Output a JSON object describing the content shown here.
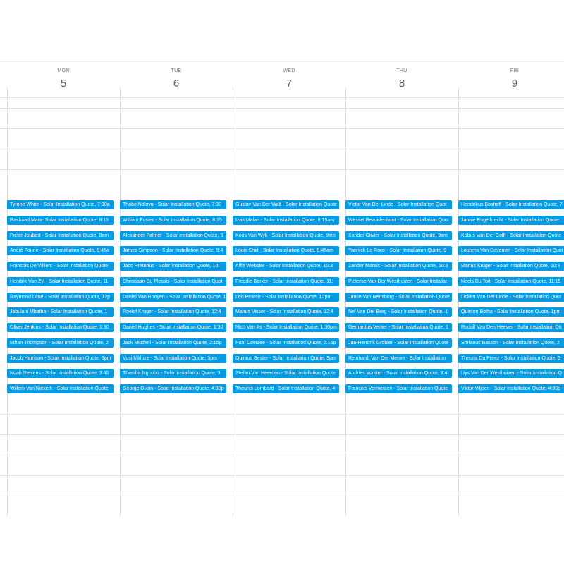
{
  "days": [
    {
      "name": "MON",
      "date": "5",
      "events": [
        "Tyrone White - Solar Installation Quote, 7:30a",
        "Rashaad Marx- Solar Installation Quote, 8:15",
        "Pieter Joubert - Solar Installation Quote, 9am",
        "André Fourie - Solar Installation Quote, 9:45a",
        "Francois De Villiers - Solar Installation Quote",
        "Hendrik Van Zyl - Solar Installation Quote, 11",
        "Raymond Lane - Solar Installation Quote, 12p",
        "Jabulani Mbatha - Solar Installation Quote, 1",
        "Oliver Jenkins - Solar Installation Quote, 1:30",
        "Ethan Thompson - Solar Installation Quote, 2",
        "Jacob Harrison - Solar Installation Quote, 3pm",
        "Noah Stevens - Solar Installation Quote, 3:45",
        "Willem Van Niekerk - Solar Installation Quote"
      ]
    },
    {
      "name": "TUE",
      "date": "6",
      "events": [
        "Thabo Ndlovu - Solar Installation Quote, 7:30",
        "William Foster - Solar Installation Quote, 8:15",
        "Alexander Palmer - Solar Installation Quote, 9",
        "James Simpson - Solar Installation Quote, 9:4",
        "Jaco Pretorius - Solar Installation Quote, 10:",
        "Christiaan Du Plessis - Solar Installation Quot",
        "Daniel Van Rooyen - Solar Installation Quote, 1",
        "Roelof Kruger - Solar Installation Quote, 12:4",
        "Daniel Hughes - Solar Installation Quote, 1:30",
        "Jack Mitchell - Solar Installation Quote, 2:15p",
        "Vusi Mkhize - Solar Installation Quote, 3pm",
        "Themba Ngcobo - Solar Installation Quote, 3",
        "George Dixon - Solar Installation Quote, 4:30p"
      ]
    },
    {
      "name": "WED",
      "date": "7",
      "events": [
        "Gustav Van Der Walt - Solar Installation Quote",
        "Izak Malan - Solar Installation Quote, 8:15am",
        "Koos Van Wyk - Solar Installation Quote, 9am",
        "Louis Smit - Solar Installation Quote, 9:45am",
        "Alfie Webster - Solar Installation Quote, 10:3",
        "Freddie Barker - Solar Installation Quote, 11:",
        "Leo Pearce - Solar Installation Quote, 12pm",
        "Marius Visser - Solar Installation Quote, 12:4",
        "Nico Van As - Solar Installation Quote, 1:30pm",
        "Paul Coetzee - Solar Installation Quote, 2:15p",
        "Quintus Bester - Solar Installation Quote, 3pm",
        "Stefan Van Heerden - Solar Installation Quote",
        "Theunis Lombard - Solar Installation Quote, 4"
      ]
    },
    {
      "name": "THU",
      "date": "8",
      "events": [
        "Victor Van Der Linde - Solar Installation Quot",
        "Wessel Bezuidenhout - Solar Installation Quot",
        "Xander Olivier - Solar Installation Quote, 9am",
        "Yannick Le Roux - Solar Installation Quote, 9",
        "Zander Marais - Solar Installation Quote, 10:3",
        "Pieterse Van Der Westhuizen - Solar Installat",
        "Janse Van Rensburg - Solar Installation Quote",
        "Nel Van Der Berg - Solar Installation Quote, 1",
        "Gerhardus Venter - Solar Installation Quote, 1",
        "Jan-Hendrik Grobler - Solar Installation Quote",
        "Reinhardt Van Der Merwe - Solar Installation",
        "Andries Vorster - Solar Installation Quote, 3:4",
        "Francois Vermeulen - Solar Installation Quote"
      ]
    },
    {
      "name": "FRI",
      "date": "9",
      "events": [
        "Hendrikus Boshoff - Solar Installation Quote, 7",
        "Jannie Engelbrecht - Solar Installation Quote",
        "Kobus Van Der Colff - Solar Installation Quote",
        "Lourens Van Deventer - Solar Installation Quot",
        "Marius Kruger - Solar Installation Quote, 10:3",
        "Neels Du Toit - Solar Installation Quote, 11:15",
        "Ockert Van Der Linde - Solar Installation Quot",
        "Quinton Botha - Solar Installation Quote, 1pm",
        "Rudolf Van Den Heever - Solar Installation Qu",
        "Stefanus Basson - Solar Installation Quote, 2",
        "Theuns Du Preez - Solar Installation Quote, 3",
        "Uys Van Der Westhuizen - Solar Installation Q",
        "Viktor Viljoen - Solar Installation Quote, 4:30p"
      ]
    }
  ]
}
